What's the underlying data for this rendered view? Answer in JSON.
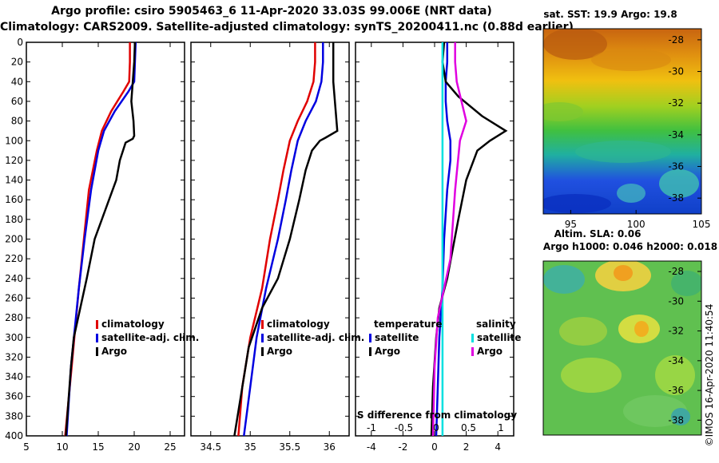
{
  "header": {
    "line1": "Argo profile: csiro 5905463_6 11-Apr-2020 33.03S 99.006E (NRT data)",
    "line2": "Climatology: CARS2009. Satellite-adjusted climatology: synTS_20200411.nc (0.88d earlier)"
  },
  "colors": {
    "climatology": "#e00000",
    "satellite": "#0000e0",
    "argo": "#000000",
    "sal_satellite": "#00e0e0",
    "sal_argo": "#e000e0"
  },
  "chart_data": [
    {
      "type": "line",
      "name": "temperature-profile",
      "xlim": [
        5,
        27
      ],
      "ylim": [
        400,
        0
      ],
      "x_ticks": [
        5,
        10,
        15,
        20,
        25
      ],
      "y_ticks": [
        0,
        20,
        40,
        60,
        80,
        100,
        120,
        140,
        160,
        180,
        200,
        220,
        240,
        260,
        280,
        300,
        320,
        340,
        360,
        380,
        400
      ],
      "legend_position": "bottom-right",
      "series": [
        {
          "name": "climatology",
          "x": [
            19.4,
            19.4,
            19.3,
            18.5,
            16.8,
            15.5,
            14.8,
            13.7,
            13.0,
            12.3,
            11.3,
            10.4
          ],
          "y": [
            0,
            20,
            40,
            50,
            70,
            90,
            110,
            150,
            200,
            250,
            330,
            400
          ]
        },
        {
          "name": "satellite-adj. clim.",
          "x": [
            20.2,
            20.1,
            20.0,
            19.2,
            17.3,
            15.8,
            15.0,
            14.0,
            13.1,
            12.3,
            11.2,
            10.6
          ],
          "y": [
            0,
            20,
            40,
            50,
            70,
            90,
            110,
            150,
            200,
            250,
            330,
            400
          ]
        },
        {
          "name": "Argo",
          "x": [
            20.1,
            20.0,
            19.8,
            19.6,
            19.9,
            20.0,
            19.8,
            18.8,
            18.0,
            17.5,
            16.0,
            14.5,
            13.4,
            12.5,
            11.6,
            11.2,
            10.8,
            10.5
          ],
          "y": [
            0,
            20,
            40,
            60,
            80,
            95,
            98,
            102,
            120,
            140,
            170,
            200,
            240,
            270,
            300,
            330,
            370,
            400
          ]
        }
      ]
    },
    {
      "type": "line",
      "name": "salinity-profile",
      "xlim": [
        34.25,
        36.25
      ],
      "ylim": [
        400,
        0
      ],
      "x_ticks": [
        34.5,
        35,
        35.5,
        36
      ],
      "legend_position": "bottom-right",
      "series": [
        {
          "name": "climatology",
          "x": [
            35.82,
            35.82,
            35.8,
            35.72,
            35.6,
            35.5,
            35.42,
            35.35,
            35.25,
            35.15,
            35.0,
            34.9,
            34.85
          ],
          "y": [
            0,
            20,
            40,
            60,
            80,
            100,
            130,
            160,
            200,
            250,
            300,
            350,
            400
          ]
        },
        {
          "name": "satellite-adj. clim.",
          "x": [
            35.92,
            35.92,
            35.9,
            35.83,
            35.7,
            35.6,
            35.52,
            35.45,
            35.35,
            35.2,
            35.08,
            35.0,
            34.92
          ],
          "y": [
            0,
            20,
            40,
            60,
            80,
            100,
            130,
            160,
            200,
            250,
            300,
            350,
            400
          ]
        },
        {
          "name": "Argo",
          "x": [
            36.05,
            36.05,
            36.05,
            36.07,
            36.1,
            35.95,
            35.88,
            35.78,
            35.7,
            35.62,
            35.5,
            35.35,
            35.15,
            34.98,
            34.88,
            34.8
          ],
          "y": [
            0,
            20,
            40,
            60,
            90,
            97,
            100,
            110,
            130,
            160,
            200,
            240,
            270,
            310,
            360,
            400
          ]
        }
      ]
    },
    {
      "type": "line",
      "name": "difference-profile",
      "xlim": [
        -5,
        5
      ],
      "ylim": [
        400,
        0
      ],
      "x_ticks": [
        -4,
        -2,
        0,
        2,
        4
      ],
      "secondary_x_label": "S difference from climatology",
      "secondary_x_ticks": [
        -1,
        -0.5,
        0,
        0.5,
        1
      ],
      "legend_temperature_title": "temperature",
      "legend_salinity_title": "salinity",
      "legend_position": "bottom",
      "series": [
        {
          "name": "satellite",
          "group": "temperature",
          "x": [
            0.8,
            0.8,
            0.7,
            0.7,
            0.8,
            1.0,
            1.0,
            0.8,
            0.6,
            0.5,
            0.3,
            0.2,
            0.1
          ],
          "y": [
            0,
            20,
            40,
            60,
            80,
            100,
            120,
            150,
            200,
            250,
            300,
            350,
            400
          ]
        },
        {
          "name": "Argo",
          "group": "temperature",
          "x": [
            0.6,
            0.5,
            0.7,
            1.5,
            3.0,
            4.5,
            3.5,
            2.7,
            2.0,
            1.5,
            0.8,
            0.3,
            0.1,
            -0.1,
            -0.2
          ],
          "y": [
            0,
            20,
            40,
            55,
            75,
            90,
            100,
            110,
            140,
            180,
            240,
            270,
            300,
            350,
            400
          ]
        },
        {
          "name": "satellite",
          "group": "salinity",
          "x": [
            0.5,
            0.5,
            0.5,
            0.5,
            0.5,
            0.5
          ],
          "y": [
            0,
            80,
            160,
            240,
            320,
            400
          ]
        },
        {
          "name": "Argo",
          "group": "salinity",
          "x": [
            1.3,
            1.3,
            1.4,
            2.0,
            1.6,
            1.3,
            1.0,
            0.6,
            0.2,
            0.0,
            -0.1
          ],
          "y": [
            0,
            20,
            40,
            80,
            100,
            150,
            220,
            250,
            280,
            330,
            400
          ]
        }
      ]
    },
    {
      "type": "heatmap",
      "name": "sst-map",
      "title": "sat. SST: 19.9 Argo: 19.8",
      "x_ticks": [
        95,
        100,
        105
      ],
      "y_ticks": [
        -28,
        -30,
        -32,
        -34,
        -36,
        -38
      ]
    },
    {
      "type": "heatmap",
      "name": "sla-map",
      "title_line1": "Altim. SLA: 0.06",
      "title_line2": "Argo h1000: 0.046 h2000: 0.018",
      "y_ticks": [
        -28,
        -30,
        -32,
        -34,
        -36,
        -38
      ]
    }
  ],
  "legend": {
    "climatology": "climatology",
    "satellite_adj": "satellite-adj. clim.",
    "argo": "Argo",
    "satellite": "satellite"
  },
  "footer": {
    "credit": "©IMOS 16-Apr-2020 11:40:54"
  }
}
